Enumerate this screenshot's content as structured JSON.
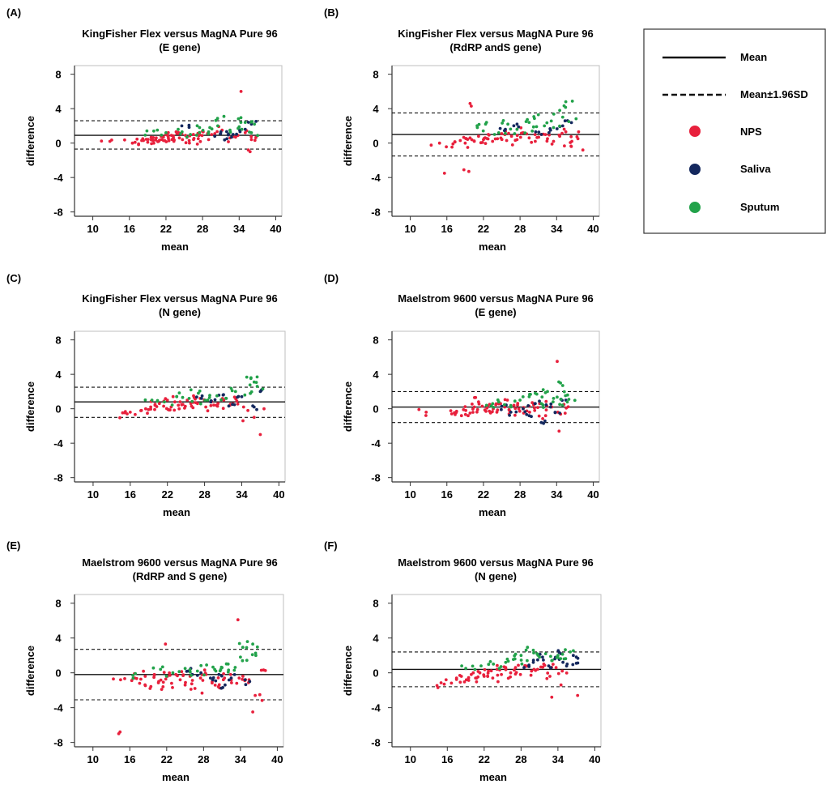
{
  "colors": {
    "NPS": "#e8203c",
    "Saliva": "#14285e",
    "Sputum": "#22a24a",
    "line": "#111111",
    "frame": "#333333"
  },
  "legend": {
    "mean_label": "Mean",
    "sd_label": "Mean±1.96SD",
    "groups": [
      "NPS",
      "Saliva",
      "Sputum"
    ]
  },
  "chart_data": [
    {
      "id": "A",
      "letter": "(A)",
      "type": "scatter",
      "title": [
        "KingFisher Flex versus MagNA Pure 96",
        "(E gene)"
      ],
      "xlabel": "mean",
      "ylabel": "difference",
      "xlim": [
        7,
        41
      ],
      "ylim": [
        -8.5,
        9
      ],
      "xticks": [
        10,
        16,
        22,
        28,
        34,
        40
      ],
      "yticks": [
        8,
        4,
        0,
        -4,
        -8
      ],
      "mean": 0.9,
      "sd_upper": 2.6,
      "sd_lower": -0.7,
      "clusters": [
        {
          "group": "NPS",
          "x": [
            12.8,
            16.5,
            17.5,
            18.3,
            19.0,
            19.6,
            20.0,
            20.4,
            20.8,
            21.2,
            21.6,
            22.0,
            22.4,
            22.9,
            23.3,
            23.8,
            24.2,
            24.7,
            25.2,
            25.8,
            26.5,
            27.3,
            28.1,
            29.0,
            30.0,
            31.2,
            32.5,
            33.8,
            35.0,
            36.0
          ],
          "y": [
            0.2,
            0.0,
            -0.1,
            0.3,
            0.1,
            0.4,
            0.0,
            0.6,
            0.2,
            0.8,
            0.3,
            1.0,
            0.5,
            0.9,
            0.2,
            1.1,
            0.6,
            0.4,
            0.9,
            0.3,
            1.0,
            0.5,
            1.3,
            0.4,
            1.1,
            1.5,
            0.6,
            0.9,
            1.2,
            0.4
          ],
          "x_jitter": 1.4,
          "y_jitter": 0.5
        },
        {
          "group": "NPS",
          "x": [
            34.3
          ],
          "y": [
            6.0
          ],
          "x_jitter": 0,
          "y_jitter": 0
        },
        {
          "group": "NPS",
          "x": [
            35.5,
            35.8
          ],
          "y": [
            -0.8,
            -1.0
          ],
          "x_jitter": 0,
          "y_jitter": 0
        },
        {
          "group": "Saliva",
          "x": [
            24.6,
            30.0,
            31.0,
            32.0,
            33.0,
            35.0,
            36.0
          ],
          "y": [
            2.0,
            0.8,
            1.3,
            0.5,
            1.0,
            1.6,
            2.2
          ],
          "x_jitter": 1.2,
          "y_jitter": 0.4
        },
        {
          "group": "Sputum",
          "x": [
            20.0,
            22.0,
            24.0,
            26.0,
            27.5,
            29.0,
            30.5,
            31.5,
            32.5,
            34.0,
            35.0,
            36.0,
            36.5
          ],
          "y": [
            1.4,
            1.2,
            1.6,
            1.0,
            1.8,
            1.3,
            2.0,
            3.1,
            1.5,
            1.9,
            2.4,
            1.2,
            2.2
          ],
          "x_jitter": 1.5,
          "y_jitter": 0.6
        }
      ]
    },
    {
      "id": "B",
      "letter": "(B)",
      "type": "scatter",
      "title": [
        "KingFisher Flex versus MagNA Pure 96",
        "(RdRP andS gene)"
      ],
      "xlabel": "mean",
      "ylabel": "difference",
      "xlim": [
        7,
        41
      ],
      "ylim": [
        -8.5,
        9
      ],
      "xticks": [
        10,
        16,
        22,
        28,
        34,
        40
      ],
      "yticks": [
        8,
        4,
        0,
        -4,
        -8
      ],
      "mean": 1.0,
      "sd_upper": 3.5,
      "sd_lower": -1.5,
      "clusters": [
        {
          "group": "NPS",
          "x": [
            14.8,
            17.0,
            18.2,
            19.0,
            19.8,
            20.5,
            21.2,
            22.0,
            22.8,
            23.5,
            24.3,
            25.0,
            25.8,
            26.6,
            27.5,
            28.5,
            29.5,
            30.5,
            31.5,
            32.5,
            33.5,
            34.5,
            35.5,
            36.5,
            37.5
          ],
          "y": [
            0.0,
            -0.1,
            0.3,
            0.0,
            0.6,
            0.2,
            0.8,
            0.4,
            1.0,
            0.2,
            0.5,
            1.1,
            0.3,
            0.8,
            0.4,
            1.2,
            0.6,
            0.2,
            1.0,
            0.5,
            0.2,
            0.8,
            1.3,
            0.2,
            0.5
          ],
          "x_jitter": 1.4,
          "y_jitter": 0.6
        },
        {
          "group": "NPS",
          "x": [
            15.6,
            18.8,
            19.6,
            19.8,
            20.0
          ],
          "y": [
            -3.5,
            -3.1,
            -3.3,
            4.6,
            4.3
          ],
          "x_jitter": 0,
          "y_jitter": 0
        },
        {
          "group": "NPS",
          "x": [
            36.4,
            37.6,
            38.3
          ],
          "y": [
            -0.4,
            1.3,
            -0.8
          ],
          "x_jitter": 0,
          "y_jitter": 0
        },
        {
          "group": "Saliva",
          "x": [
            25.6,
            27.5,
            31.5,
            33.0,
            35.0,
            35.8
          ],
          "y": [
            1.6,
            2.2,
            1.0,
            1.5,
            2.0,
            2.6
          ],
          "x_jitter": 1.0,
          "y_jitter": 0.4
        },
        {
          "group": "Sputum",
          "x": [
            21.0,
            22.5,
            24.5,
            26.0,
            27.5,
            29.0,
            30.0,
            31.0,
            32.0,
            33.5,
            34.5,
            35.5,
            36.0
          ],
          "y": [
            1.8,
            2.4,
            1.2,
            2.2,
            1.6,
            2.5,
            1.4,
            3.3,
            2.0,
            1.8,
            3.8,
            4.8,
            2.5
          ],
          "x_jitter": 1.3,
          "y_jitter": 0.6
        }
      ]
    },
    {
      "id": "C",
      "letter": "(C)",
      "type": "scatter",
      "title": [
        "KingFisher Flex versus MagNA Pure 96",
        "(N gene)"
      ],
      "xlabel": "mean",
      "ylabel": "difference",
      "xlim": [
        7,
        41
      ],
      "ylim": [
        -8.5,
        9
      ],
      "xticks": [
        10,
        16,
        22,
        28,
        34,
        40
      ],
      "yticks": [
        8,
        4,
        0,
        -4,
        -8
      ],
      "mean": 0.8,
      "sd_upper": 2.5,
      "sd_lower": -1.0,
      "clusters": [
        {
          "group": "NPS",
          "x": [
            15.5,
            16.0,
            17.8,
            18.5,
            19.3,
            20.0,
            20.7,
            21.4,
            22.0,
            22.6,
            23.2,
            23.9,
            24.5,
            25.2,
            25.9,
            26.6,
            27.3,
            28.2,
            29.1,
            30.1,
            31.1,
            32.1,
            33.2,
            34.3
          ],
          "y": [
            -0.6,
            -0.4,
            -0.2,
            0.0,
            0.2,
            0.4,
            0.6,
            0.3,
            1.0,
            0.2,
            0.8,
            0.0,
            0.5,
            1.0,
            0.3,
            0.7,
            1.2,
            0.2,
            0.8,
            0.3,
            1.0,
            0.4,
            0.9,
            0.2
          ],
          "x_jitter": 1.2,
          "y_jitter": 0.5
        },
        {
          "group": "NPS",
          "x": [
            34.2,
            36.0,
            37.0,
            37.6
          ],
          "y": [
            -1.4,
            -1.0,
            -3.0,
            0.0
          ],
          "x_jitter": 0,
          "y_jitter": 0
        },
        {
          "group": "Saliva",
          "x": [
            27.5,
            29.0,
            31.0,
            32.5,
            34.0,
            36.0,
            37.0
          ],
          "y": [
            1.2,
            0.8,
            1.6,
            0.5,
            1.4,
            0.2,
            2.0
          ],
          "x_jitter": 0.8,
          "y_jitter": 0.3
        },
        {
          "group": "Sputum",
          "x": [
            19.5,
            21.5,
            23.5,
            25.5,
            27.0,
            28.5,
            30.0,
            31.5,
            33.0,
            34.5,
            35.5,
            36.0,
            36.5
          ],
          "y": [
            1.0,
            0.8,
            1.4,
            1.2,
            1.8,
            1.0,
            1.5,
            1.2,
            2.0,
            1.6,
            3.6,
            3.1,
            2.6
          ],
          "x_jitter": 1.3,
          "y_jitter": 0.5
        }
      ]
    },
    {
      "id": "D",
      "letter": "(D)",
      "type": "scatter",
      "title": [
        "Maelstrom 9600 versus MagNA Pure 96",
        "(E gene)"
      ],
      "xlabel": "mean",
      "ylabel": "difference",
      "xlim": [
        7,
        41
      ],
      "ylim": [
        -8.5,
        9
      ],
      "xticks": [
        10,
        16,
        22,
        28,
        34,
        40
      ],
      "yticks": [
        8,
        4,
        0,
        -4,
        -8
      ],
      "mean": 0.2,
      "sd_upper": 2.0,
      "sd_lower": -1.6,
      "clusters": [
        {
          "group": "NPS",
          "x": [
            12.6,
            16.8,
            17.6,
            18.4,
            19.1,
            19.8,
            20.5,
            21.2,
            21.8,
            22.4,
            23.0,
            23.6,
            24.2,
            24.8,
            25.5,
            26.2,
            27.0,
            27.8,
            28.6,
            29.5,
            30.4,
            31.3,
            32.2,
            33.2,
            34.2,
            35.2
          ],
          "y": [
            -0.4,
            -0.6,
            -0.3,
            -0.8,
            -0.2,
            -0.5,
            0.2,
            0.8,
            0.3,
            -0.3,
            0.5,
            0.0,
            -0.4,
            0.6,
            0.2,
            -0.6,
            0.4,
            0.0,
            -0.5,
            0.3,
            -0.2,
            0.6,
            -0.8,
            0.2,
            -0.4,
            0.5
          ],
          "x_jitter": 1.2,
          "y_jitter": 0.5
        },
        {
          "group": "NPS",
          "x": [
            34.1,
            34.4,
            30.0,
            20.7
          ],
          "y": [
            5.5,
            -2.6,
            0.7,
            1.3
          ],
          "x_jitter": 0,
          "y_jitter": 0
        },
        {
          "group": "Saliva",
          "x": [
            25.0,
            26.5,
            28.5,
            29.5,
            30.5,
            31.5,
            33.0,
            34.5,
            35.5
          ],
          "y": [
            0.3,
            -0.4,
            0.0,
            -0.8,
            0.6,
            -1.6,
            0.2,
            -0.5,
            1.0
          ],
          "x_jitter": 0.9,
          "y_jitter": 0.4
        },
        {
          "group": "Sputum",
          "x": [
            22.5,
            24.5,
            26.5,
            28.0,
            29.5,
            30.5,
            31.5,
            32.5,
            33.5,
            34.5,
            35.0,
            35.8,
            36.0
          ],
          "y": [
            0.4,
            0.8,
            0.2,
            1.0,
            1.4,
            1.8,
            0.6,
            2.0,
            1.2,
            0.5,
            2.7,
            1.6,
            1.1
          ],
          "x_jitter": 1.2,
          "y_jitter": 0.5
        }
      ]
    },
    {
      "id": "E",
      "letter": "(E)",
      "type": "scatter",
      "title": [
        "Maelstrom 9600 versus MagNA Pure 96",
        "(RdRP and S gene)"
      ],
      "xlabel": "mean",
      "ylabel": "difference",
      "xlim": [
        7,
        41
      ],
      "ylim": [
        -8.5,
        9
      ],
      "xticks": [
        10,
        16,
        22,
        28,
        34,
        40
      ],
      "yticks": [
        8,
        4,
        0,
        -4,
        -8
      ],
      "mean": -0.2,
      "sd_upper": 2.7,
      "sd_lower": -3.1,
      "clusters": [
        {
          "group": "NPS",
          "x": [
            14.5,
            16.8,
            17.6,
            18.5,
            19.3,
            20.0,
            20.7,
            21.4,
            22.1,
            22.8,
            23.5,
            24.2,
            25.0,
            25.8,
            26.6,
            27.5,
            28.4,
            29.4,
            30.4,
            31.4,
            32.4,
            33.4,
            34.4,
            35.4,
            36.4,
            37.4
          ],
          "y": [
            -0.8,
            -0.6,
            -1.2,
            -0.4,
            -1.8,
            -0.2,
            -1.0,
            -1.6,
            -0.4,
            -1.2,
            -0.2,
            -0.8,
            -1.4,
            -0.4,
            -1.8,
            -0.6,
            -0.2,
            -1.0,
            -1.6,
            -0.6,
            -0.2,
            -1.2,
            -0.4,
            -0.8,
            -2.6,
            0.3
          ],
          "x_jitter": 1.2,
          "y_jitter": 0.6
        },
        {
          "group": "NPS",
          "x": [
            14.2,
            14.4,
            21.8,
            33.6,
            36.0
          ],
          "y": [
            -7.0,
            -6.8,
            3.3,
            6.1,
            -4.5
          ],
          "x_jitter": 0,
          "y_jitter": 0
        },
        {
          "group": "Saliva",
          "x": [
            25.5,
            27.0,
            29.5,
            30.5,
            31.5,
            32.5,
            35.5
          ],
          "y": [
            0.2,
            -0.3,
            -0.8,
            -0.2,
            -1.4,
            -0.6,
            -1.0
          ],
          "x_jitter": 0.9,
          "y_jitter": 0.4
        },
        {
          "group": "Sputum",
          "x": [
            16.5,
            21.0,
            23.0,
            25.0,
            27.0,
            28.5,
            30.0,
            31.0,
            32.0,
            33.0,
            34.0,
            35.0,
            36.0,
            36.5
          ],
          "y": [
            -0.3,
            0.4,
            0.0,
            0.5,
            0.2,
            0.9,
            0.2,
            0.6,
            1.0,
            0.3,
            1.8,
            2.9,
            3.3,
            2.0
          ],
          "x_jitter": 1.2,
          "y_jitter": 0.5
        }
      ]
    },
    {
      "id": "F",
      "letter": "(F)",
      "type": "scatter",
      "title": [
        "Maelstrom 9600 versus MagNA Pure 96",
        "(N gene)"
      ],
      "xlabel": "mean",
      "ylabel": "difference",
      "xlim": [
        7,
        41
      ],
      "ylim": [
        -8.5,
        9
      ],
      "xticks": [
        10,
        16,
        22,
        28,
        34,
        40
      ],
      "yticks": [
        8,
        4,
        0,
        -4,
        -8
      ],
      "mean": 0.4,
      "sd_upper": 2.4,
      "sd_lower": -1.6,
      "clusters": [
        {
          "group": "NPS",
          "x": [
            15.5,
            15.8,
            17.5,
            18.3,
            19.1,
            19.9,
            20.6,
            21.3,
            22.0,
            22.7,
            23.4,
            24.1,
            24.8,
            25.5,
            26.3,
            27.1,
            27.9,
            28.8,
            29.7,
            30.7,
            31.7,
            32.7,
            33.7,
            34.7
          ],
          "y": [
            -1.3,
            -0.8,
            -0.6,
            -0.4,
            -0.8,
            -0.2,
            -0.6,
            0.0,
            -0.4,
            0.2,
            -0.6,
            0.4,
            -0.2,
            0.6,
            0.0,
            0.6,
            -0.2,
            0.8,
            0.2,
            0.4,
            1.0,
            -0.4,
            0.6,
            0.2
          ],
          "x_jitter": 1.2,
          "y_jitter": 0.5
        },
        {
          "group": "NPS",
          "x": [
            33.0,
            37.2,
            34.5
          ],
          "y": [
            -2.8,
            -2.6,
            -1.4
          ],
          "x_jitter": 0,
          "y_jitter": 0
        },
        {
          "group": "Saliva",
          "x": [
            28.5,
            30.0,
            31.5,
            32.5,
            33.5,
            34.5,
            35.5,
            36.5,
            37.0
          ],
          "y": [
            0.6,
            1.2,
            1.8,
            0.8,
            1.6,
            2.2,
            1.0,
            2.0,
            1.1
          ],
          "x_jitter": 0.9,
          "y_jitter": 0.4
        },
        {
          "group": "Sputum",
          "x": [
            19.0,
            21.5,
            23.5,
            25.5,
            27.0,
            28.0,
            29.0,
            30.0,
            31.0,
            32.0,
            33.0,
            34.0,
            35.0,
            36.0
          ],
          "y": [
            0.5,
            0.8,
            1.0,
            1.2,
            1.6,
            2.0,
            1.4,
            2.6,
            1.8,
            2.2,
            1.4,
            2.0,
            1.6,
            2.4
          ],
          "x_jitter": 1.3,
          "y_jitter": 0.5
        }
      ]
    }
  ]
}
